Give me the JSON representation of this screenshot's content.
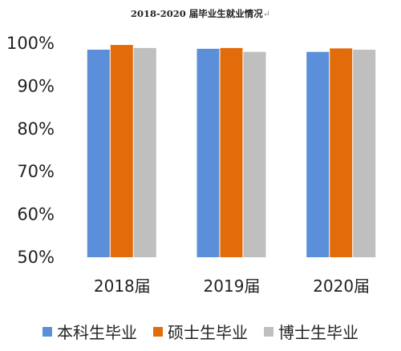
{
  "chart_data": {
    "type": "bar",
    "title": "2018-2020 届毕业生就业情况",
    "title_mark": "↵",
    "categories": [
      "2018届",
      "2019届",
      "2020届"
    ],
    "series": [
      {
        "name": "本科生毕业",
        "color": "#5B8FD9",
        "values": [
          98.5,
          98.7,
          98.0
        ]
      },
      {
        "name": "硕士生毕业",
        "color": "#E36C0A",
        "values": [
          99.6,
          98.9,
          98.8
        ]
      },
      {
        "name": "博士生毕业",
        "color": "#BFBFBF",
        "values": [
          98.9,
          98.0,
          98.5
        ]
      }
    ],
    "ylim": [
      50,
      100
    ],
    "yticks": [
      "50%",
      "60%",
      "70%",
      "80%",
      "90%",
      "100%"
    ],
    "grid": false,
    "legend_position": "bottom"
  }
}
